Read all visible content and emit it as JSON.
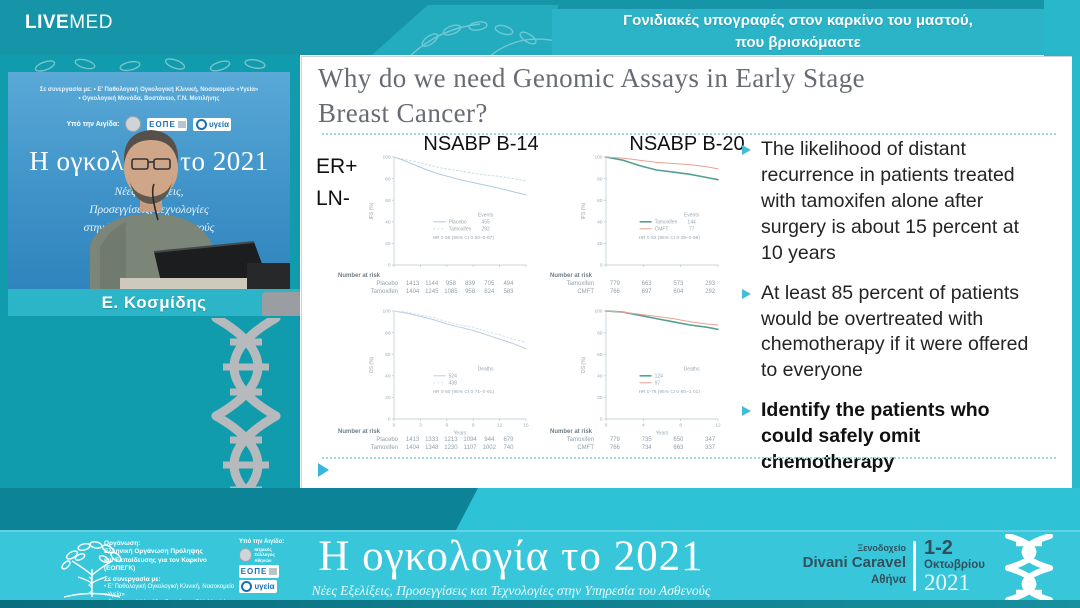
{
  "header": {
    "brand_live": "LIVE",
    "brand_med": "MED",
    "title_line1": "Γονιδιακές υπογραφές στον καρκίνο του μαστού,",
    "title_line2": "που βρισκόμαστε"
  },
  "video": {
    "partner_line1": "Σε συνεργασία με:  • Ε' Παθολογική Ογκολογική Κλινική, Νοσοκομείο «Υγεία»",
    "partner_line2": "• Ογκολογική Μονάδα, Βοστάνειο, Γ.Ν. Μυτιλήνης",
    "aegis_label": "Υπό την Αιγίδα:",
    "aegis_logo_eope": "ΕΟΠΕ",
    "aegis_logo_ygeia": "υγεία",
    "banner_title": "Η ογκολογία το 2021",
    "banner_sub1": "Νέες Εξελίξεις,",
    "banner_sub2": "Προσεγγίσεις, Τεχνολογίες",
    "banner_sub3": "στην Υπηρεσία του Ασθενούς",
    "speaker_name": "Ε. Κοσμίδης"
  },
  "slide": {
    "title_line1": "Why do we need Genomic Assays in Early Stage",
    "title_line2": "Breast Cancer?",
    "er_label": "ER+",
    "ln_label": "LN-",
    "col_headers": [
      "NSABP B-14",
      "NSABP B-20"
    ],
    "bullets": [
      {
        "text": "The likelihood of distant recurrence in patients treated with tamoxifen alone after surgery is about 15 percent at 10 years",
        "bold": false
      },
      {
        "text": "At least 85 percent of patients would be overtreated with chemotherapy if it were offered to everyone",
        "bold": false
      },
      {
        "text": "Identify the patients who could safely omit chemotherapy",
        "bold": true
      }
    ]
  },
  "chart_data": [
    {
      "id": "b14-ifs",
      "type": "line",
      "panel": "NSABP B-14",
      "ylabel": "IFS (%)",
      "ylim": [
        0,
        100
      ],
      "yticks": [
        100,
        80,
        60,
        40,
        20,
        0
      ],
      "xtick_n": 6,
      "series": [
        {
          "name": "Placebo",
          "color": "#aac7e0",
          "dash": false,
          "width": 1,
          "points": [
            [
              0,
              100
            ],
            [
              0.07,
              97
            ],
            [
              0.15,
              93
            ],
            [
              0.25,
              88
            ],
            [
              0.35,
              84
            ],
            [
              0.5,
              79
            ],
            [
              0.65,
              75
            ],
            [
              0.8,
              71
            ],
            [
              0.9,
              68
            ],
            [
              1,
              65
            ]
          ]
        },
        {
          "name": "Tamoxifen",
          "color": "#c2ded9",
          "dash": true,
          "width": 1,
          "points": [
            [
              0,
              100
            ],
            [
              0.07,
              98
            ],
            [
              0.15,
              96
            ],
            [
              0.25,
              93
            ],
            [
              0.35,
              90
            ],
            [
              0.5,
              87
            ],
            [
              0.65,
              84
            ],
            [
              0.8,
              82
            ],
            [
              0.9,
              80
            ],
            [
              1,
              78
            ]
          ]
        }
      ],
      "legend": {
        "header": "Events",
        "rows": [
          [
            "Placebo",
            "455"
          ],
          [
            "Tamoxifen",
            "292"
          ]
        ],
        "hr": "HR 0·58 (95% CI 0·50–0·67)"
      },
      "risk": {
        "title": "Number at risk",
        "rows": [
          [
            "Placebo",
            [
              "1413",
              "1144",
              "958",
              "839",
              "705",
              "494"
            ]
          ],
          [
            "Tamoxifen",
            [
              "1404",
              "1245",
              "1085",
              "958",
              "824",
              "583"
            ]
          ]
        ]
      }
    },
    {
      "id": "b20-ifs",
      "type": "line",
      "panel": "NSABP B-20",
      "ylabel": "IFS (%)",
      "ylim": [
        0,
        100
      ],
      "yticks": [
        100,
        80,
        60,
        40,
        20,
        0
      ],
      "xtick_n": 4,
      "series": [
        {
          "name": "Tamoxifen",
          "color": "#569e92",
          "dash": false,
          "width": 1.6,
          "points": [
            [
              0,
              100
            ],
            [
              0.15,
              97
            ],
            [
              0.3,
              92
            ],
            [
              0.45,
              88
            ],
            [
              0.6,
              86
            ],
            [
              0.75,
              84
            ],
            [
              0.9,
              81
            ],
            [
              1,
              79
            ]
          ]
        },
        {
          "name": "CMFT",
          "color": "#e7a393",
          "dash": false,
          "width": 1,
          "points": [
            [
              0,
              100
            ],
            [
              0.15,
              99
            ],
            [
              0.3,
              97
            ],
            [
              0.45,
              95
            ],
            [
              0.6,
              94
            ],
            [
              0.75,
              93
            ],
            [
              0.9,
              91
            ],
            [
              1,
              89
            ]
          ]
        }
      ],
      "legend": {
        "header": "Events",
        "rows": [
          [
            "Tamoxifen",
            "144"
          ],
          [
            "CMFT",
            "77"
          ]
        ],
        "hr": "HR 0·52 (95% CI 0·39–0·68)"
      },
      "risk": {
        "title": "Number at risk",
        "rows": [
          [
            "Tamoxifen",
            [
              "779",
              "663",
              "573",
              "293"
            ]
          ],
          [
            "CMFT",
            [
              "766",
              "697",
              "604",
              "292"
            ]
          ]
        ]
      }
    },
    {
      "id": "b14-os",
      "type": "line",
      "panel": "NSABP B-14",
      "ylabel": "OS (%)",
      "xlabel": "Years",
      "ylim": [
        0,
        100
      ],
      "yticks": [
        100,
        80,
        60,
        40,
        20,
        0
      ],
      "xticks": [
        "0",
        "3",
        "6",
        "9",
        "12",
        "15"
      ],
      "series": [
        {
          "name": "Placebo",
          "color": "#b9cfe4",
          "dash": false,
          "width": 1,
          "points": [
            [
              0,
              100
            ],
            [
              0.1,
              98
            ],
            [
              0.2,
              95
            ],
            [
              0.3,
              92
            ],
            [
              0.4,
              88
            ],
            [
              0.5,
              85
            ],
            [
              0.6,
              82
            ],
            [
              0.7,
              78
            ],
            [
              0.8,
              74
            ],
            [
              0.9,
              70
            ],
            [
              1,
              65
            ]
          ]
        },
        {
          "name": "Tamoxifen",
          "color": "#cfe0ea",
          "dash": true,
          "width": 1,
          "points": [
            [
              0,
              100
            ],
            [
              0.1,
              99
            ],
            [
              0.2,
              96
            ],
            [
              0.3,
              94
            ],
            [
              0.4,
              90
            ],
            [
              0.5,
              87
            ],
            [
              0.6,
              85
            ],
            [
              0.7,
              81
            ],
            [
              0.8,
              78
            ],
            [
              0.9,
              74
            ],
            [
              1,
              71
            ]
          ]
        }
      ],
      "legend": {
        "header": "Deaths",
        "rows": [
          [
            "",
            "524"
          ],
          [
            "",
            "438"
          ]
        ],
        "hr": "HR 0·80 (95% CI 0·71–0·91)"
      },
      "risk": {
        "title": "Number at risk",
        "rows": [
          [
            "Placebo",
            [
              "1413",
              "1333",
              "1213",
              "1094",
              "944",
              "679"
            ]
          ],
          [
            "Tamoxifen",
            [
              "1404",
              "1348",
              "1230",
              "1107",
              "1002",
              "740"
            ]
          ]
        ]
      }
    },
    {
      "id": "b20-os",
      "type": "line",
      "panel": "NSABP B-20",
      "ylabel": "OS (%)",
      "xlabel": "Years",
      "ylim": [
        0,
        100
      ],
      "yticks": [
        100,
        80,
        60,
        40,
        20,
        0
      ],
      "xticks": [
        "0",
        "4",
        "8",
        "12"
      ],
      "series": [
        {
          "name": "Tamoxifen",
          "color": "#569e92",
          "dash": false,
          "width": 1.6,
          "points": [
            [
              0,
              100
            ],
            [
              0.15,
              99
            ],
            [
              0.3,
              96
            ],
            [
              0.45,
              93
            ],
            [
              0.6,
              90
            ],
            [
              0.75,
              87
            ],
            [
              0.9,
              85
            ],
            [
              1,
              83
            ]
          ]
        },
        {
          "name": "CMFT",
          "color": "#e7a393",
          "dash": false,
          "width": 1,
          "points": [
            [
              0,
              100
            ],
            [
              0.15,
              99
            ],
            [
              0.3,
              97
            ],
            [
              0.45,
              95
            ],
            [
              0.6,
              93
            ],
            [
              0.75,
              90
            ],
            [
              0.9,
              88
            ],
            [
              1,
              87
            ]
          ]
        }
      ],
      "legend": {
        "header": "Deaths",
        "rows": [
          [
            "",
            "124"
          ],
          [
            "",
            "97"
          ]
        ],
        "hr": "HR 0·78 (95% CI 0·60–1·01)"
      },
      "risk": {
        "title": "Number at risk",
        "rows": [
          [
            "Tamoxifen",
            [
              "779",
              "735",
              "650",
              "347"
            ]
          ],
          [
            "CMFT",
            [
              "766",
              "734",
              "663",
              "337"
            ]
          ]
        ]
      }
    }
  ],
  "footer": {
    "organizer_label": "Οργάνωση:",
    "organizer_line1": "Ελληνική Οργάνωση Πρόληψης",
    "organizer_line2": "και Εκπαίδευσης για τον Καρκίνο (ΕΟΠΕΓΚ)",
    "partner_label": "Σε συνεργασία με:",
    "partner_line1": "• Ε' Παθολογική Ογκολογική Κλινική, Νοσοκομείο «Υγεία»",
    "partner_line2": "• Ογκολογική Μονάδα, Βοστάνειο, Γ.Ν. Μυτιλήνης",
    "aegis_label": "Υπό την Αιγίδα:",
    "aegis_logo_seal_line1": "Ιατρικός",
    "aegis_logo_seal_line2": "Σύλλογος Αθηνών",
    "aegis_logo_eope": "ΕΟΠΕ",
    "aegis_logo_ygeia": "υγεία",
    "title": "Η ογκολογία το 2021",
    "subtitle": "Νέες Εξελίξεις, Προσεγγίσεις και Τεχνολογίες στην Υπηρεσία του Ασθενούς",
    "venue_small": "Ξενοδοχείο",
    "venue_name": "Divani Caravel",
    "venue_city": "Αθήνα",
    "date_days": "1-2",
    "date_month": "Οκτωβρίου",
    "date_year": "2021"
  },
  "colors": {
    "teal_dark": "#1695a8",
    "teal_mid": "#2bb3c7",
    "teal_footer": "#38c7da",
    "bullet_accent": "#45bade"
  }
}
